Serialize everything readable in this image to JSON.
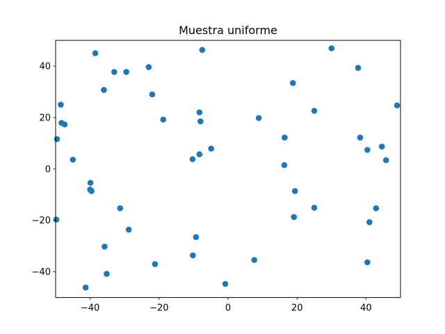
{
  "chart_data": {
    "type": "scatter",
    "title": "Muestra uniforme",
    "xlabel": "",
    "ylabel": "",
    "xlim": [
      -50,
      50
    ],
    "ylim": [
      -50,
      50
    ],
    "xticks": [
      -40,
      -20,
      0,
      20,
      40
    ],
    "yticks": [
      -40,
      -20,
      0,
      20,
      40
    ],
    "xtick_labels": [
      "−40",
      "−20",
      "0",
      "20",
      "40"
    ],
    "ytick_labels": [
      "−40",
      "−20",
      "0",
      "20",
      "40"
    ],
    "grid": false,
    "legend": "none",
    "marker_color": "#1f77b4",
    "series": [
      {
        "points": [
          {
            "x": -38.5,
            "y": 45.0
          },
          {
            "x": -7.5,
            "y": 46.3
          },
          {
            "x": 30.0,
            "y": 46.9
          },
          {
            "x": -33.0,
            "y": 37.7
          },
          {
            "x": -29.5,
            "y": 37.7
          },
          {
            "x": -23.0,
            "y": 39.6
          },
          {
            "x": 37.7,
            "y": 39.3
          },
          {
            "x": -36.0,
            "y": 30.7
          },
          {
            "x": -22.0,
            "y": 29.0
          },
          {
            "x": 18.8,
            "y": 33.4
          },
          {
            "x": -48.5,
            "y": 25.0
          },
          {
            "x": 25.0,
            "y": 22.6
          },
          {
            "x": 49.0,
            "y": 24.7
          },
          {
            "x": -8.3,
            "y": 22.0
          },
          {
            "x": -18.8,
            "y": 19.2
          },
          {
            "x": -8.0,
            "y": 18.5
          },
          {
            "x": 8.9,
            "y": 19.8
          },
          {
            "x": -48.3,
            "y": 17.9
          },
          {
            "x": -47.4,
            "y": 17.3
          },
          {
            "x": -49.6,
            "y": 11.6
          },
          {
            "x": 16.4,
            "y": 12.2
          },
          {
            "x": 38.3,
            "y": 12.2
          },
          {
            "x": -4.9,
            "y": 7.9
          },
          {
            "x": -8.3,
            "y": 5.7
          },
          {
            "x": -10.3,
            "y": 3.8
          },
          {
            "x": 40.4,
            "y": 7.4
          },
          {
            "x": 44.6,
            "y": 8.7
          },
          {
            "x": -45.0,
            "y": 3.6
          },
          {
            "x": 45.8,
            "y": 3.4
          },
          {
            "x": 16.3,
            "y": 1.5
          },
          {
            "x": -39.9,
            "y": -5.4
          },
          {
            "x": -40.0,
            "y": -8.0
          },
          {
            "x": -39.6,
            "y": -8.6
          },
          {
            "x": 19.4,
            "y": -8.6
          },
          {
            "x": -31.3,
            "y": -15.3
          },
          {
            "x": 25.0,
            "y": -15.1
          },
          {
            "x": 42.9,
            "y": -15.3
          },
          {
            "x": -49.8,
            "y": -19.7
          },
          {
            "x": 19.1,
            "y": -18.7
          },
          {
            "x": 41.0,
            "y": -20.7
          },
          {
            "x": -28.8,
            "y": -23.6
          },
          {
            "x": -9.3,
            "y": -26.5
          },
          {
            "x": -35.8,
            "y": -30.2
          },
          {
            "x": -10.2,
            "y": -33.6
          },
          {
            "x": 7.6,
            "y": -35.4
          },
          {
            "x": -21.2,
            "y": -37.0
          },
          {
            "x": 40.4,
            "y": -36.3
          },
          {
            "x": -35.2,
            "y": -40.8
          },
          {
            "x": -41.3,
            "y": -46.1
          },
          {
            "x": -0.8,
            "y": -44.7
          }
        ]
      }
    ]
  }
}
